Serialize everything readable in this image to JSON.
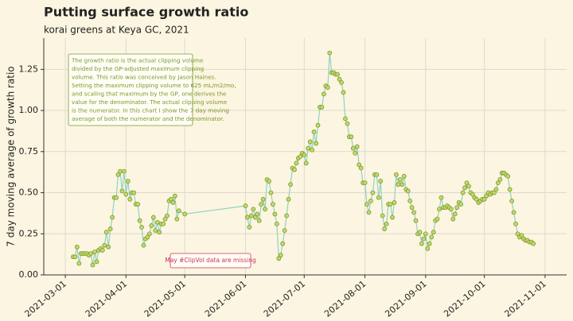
{
  "chart_data": {
    "type": "line",
    "title": "Putting surface growth ratio",
    "subtitle": "korai greens at Keya GC, 2021",
    "y_label": "7 day moving average of growth ratio",
    "annotations": [
      {
        "lines": [
          "The growth ratio is the actual clipping volume",
          "divided by the GP-adjusted maximum clipping",
          "volume. This ratio was conceived by Jason Haines.",
          "Setting the maximum clipping volume to 625 mL/m2/mo,",
          "and scaling that maximum by the GP, one derives the",
          "value for the denominator. The actual clipping volume",
          "is the numerator. In this chart I show the 7 day moving",
          "average of both the numerator and the denominator."
        ],
        "color": "#7a9a2a"
      },
      {
        "lines": [
          "May #ClipVol data are missing"
        ],
        "color": "#c8385a"
      }
    ],
    "x": [
      "2021-03-05",
      "2021-03-06",
      "2021-03-07",
      "2021-03-08",
      "2021-03-09",
      "2021-03-10",
      "2021-03-11",
      "2021-03-12",
      "2021-03-13",
      "2021-03-14",
      "2021-03-15",
      "2021-03-16",
      "2021-03-17",
      "2021-03-18",
      "2021-03-19",
      "2021-03-20",
      "2021-03-21",
      "2021-03-22",
      "2021-03-23",
      "2021-03-24",
      "2021-03-25",
      "2021-03-26",
      "2021-03-27",
      "2021-03-28",
      "2021-03-29",
      "2021-03-30",
      "2021-03-31",
      "2021-04-01",
      "2021-04-02",
      "2021-04-03",
      "2021-04-04",
      "2021-04-05",
      "2021-04-06",
      "2021-04-07",
      "2021-04-08",
      "2021-04-09",
      "2021-04-10",
      "2021-04-11",
      "2021-04-12",
      "2021-04-13",
      "2021-04-14",
      "2021-04-15",
      "2021-04-16",
      "2021-04-17",
      "2021-04-18",
      "2021-04-19",
      "2021-04-20",
      "2021-04-21",
      "2021-04-22",
      "2021-04-23",
      "2021-04-24",
      "2021-04-25",
      "2021-04-26",
      "2021-04-27",
      "2021-04-28",
      "2021-05-01",
      "2021-06-01",
      "2021-06-02",
      "2021-06-03",
      "2021-06-04",
      "2021-06-05",
      "2021-06-06",
      "2021-06-07",
      "2021-06-08",
      "2021-06-09",
      "2021-06-10",
      "2021-06-11",
      "2021-06-12",
      "2021-06-13",
      "2021-06-14",
      "2021-06-15",
      "2021-06-16",
      "2021-06-17",
      "2021-06-18",
      "2021-06-19",
      "2021-06-20",
      "2021-06-21",
      "2021-06-22",
      "2021-06-23",
      "2021-06-24",
      "2021-06-25",
      "2021-06-26",
      "2021-06-27",
      "2021-06-28",
      "2021-06-29",
      "2021-06-30",
      "2021-07-01",
      "2021-07-02",
      "2021-07-03",
      "2021-07-04",
      "2021-07-05",
      "2021-07-06",
      "2021-07-07",
      "2021-07-08",
      "2021-07-09",
      "2021-07-10",
      "2021-07-11",
      "2021-07-12",
      "2021-07-13",
      "2021-07-14",
      "2021-07-15",
      "2021-07-16",
      "2021-07-17",
      "2021-07-18",
      "2021-07-19",
      "2021-07-20",
      "2021-07-21",
      "2021-07-22",
      "2021-07-23",
      "2021-07-24",
      "2021-07-25",
      "2021-07-26",
      "2021-07-27",
      "2021-07-28",
      "2021-07-29",
      "2021-07-30",
      "2021-07-31",
      "2021-08-01",
      "2021-08-02",
      "2021-08-03",
      "2021-08-04",
      "2021-08-05",
      "2021-08-06",
      "2021-08-07",
      "2021-08-08",
      "2021-08-09",
      "2021-08-10",
      "2021-08-11",
      "2021-08-12",
      "2021-08-13",
      "2021-08-14",
      "2021-08-15",
      "2021-08-16",
      "2021-08-17",
      "2021-08-18",
      "2021-08-19",
      "2021-08-20",
      "2021-08-21",
      "2021-08-22",
      "2021-08-23",
      "2021-08-24",
      "2021-08-25",
      "2021-08-26",
      "2021-08-27",
      "2021-08-28",
      "2021-08-29",
      "2021-08-30",
      "2021-08-31",
      "2021-09-01",
      "2021-09-02",
      "2021-09-03",
      "2021-09-04",
      "2021-09-05",
      "2021-09-06",
      "2021-09-07",
      "2021-09-08",
      "2021-09-09",
      "2021-09-10",
      "2021-09-11",
      "2021-09-12",
      "2021-09-13",
      "2021-09-14",
      "2021-09-15",
      "2021-09-16",
      "2021-09-17",
      "2021-09-18",
      "2021-09-19",
      "2021-09-20",
      "2021-09-21",
      "2021-09-22",
      "2021-09-23",
      "2021-09-24",
      "2021-09-25",
      "2021-09-26",
      "2021-09-27",
      "2021-09-28",
      "2021-09-29",
      "2021-09-30",
      "2021-10-01",
      "2021-10-02",
      "2021-10-03",
      "2021-10-04",
      "2021-10-05",
      "2021-10-06",
      "2021-10-07",
      "2021-10-08",
      "2021-10-09",
      "2021-10-10",
      "2021-10-11",
      "2021-10-12",
      "2021-10-13",
      "2021-10-14",
      "2021-10-15",
      "2021-10-16",
      "2021-10-17",
      "2021-10-18",
      "2021-10-19",
      "2021-10-20",
      "2021-10-21",
      "2021-10-22",
      "2021-10-23",
      "2021-10-24",
      "2021-10-25",
      "2021-10-26"
    ],
    "values": [
      0.11,
      0.11,
      0.17,
      0.07,
      0.13,
      0.13,
      0.13,
      0.13,
      0.12,
      0.13,
      0.06,
      0.14,
      0.08,
      0.15,
      0.16,
      0.15,
      0.18,
      0.26,
      0.17,
      0.28,
      0.35,
      0.47,
      0.47,
      0.61,
      0.63,
      0.51,
      0.63,
      0.49,
      0.57,
      0.46,
      0.5,
      0.5,
      0.43,
      0.43,
      0.33,
      0.29,
      0.18,
      0.22,
      0.23,
      0.25,
      0.3,
      0.35,
      0.27,
      0.32,
      0.26,
      0.31,
      0.31,
      0.34,
      0.36,
      0.45,
      0.46,
      0.44,
      0.48,
      0.34,
      0.39,
      0.37,
      0.42,
      0.35,
      0.29,
      0.36,
      0.4,
      0.35,
      0.37,
      0.33,
      0.43,
      0.46,
      0.4,
      0.58,
      0.57,
      0.5,
      0.43,
      0.37,
      0.31,
      0.1,
      0.12,
      0.19,
      0.27,
      0.36,
      0.46,
      0.55,
      0.65,
      0.64,
      0.68,
      0.71,
      0.72,
      0.74,
      0.73,
      0.68,
      0.77,
      0.81,
      0.76,
      0.87,
      0.8,
      0.91,
      1.02,
      1.02,
      1.1,
      1.15,
      1.14,
      1.35,
      1.23,
      1.23,
      1.22,
      1.22,
      1.19,
      1.17,
      1.11,
      0.95,
      0.92,
      0.84,
      0.84,
      0.77,
      0.74,
      0.78,
      0.67,
      0.65,
      0.56,
      0.56,
      0.43,
      0.38,
      0.45,
      0.5,
      0.61,
      0.61,
      0.47,
      0.57,
      0.36,
      0.28,
      0.31,
      0.43,
      0.43,
      0.35,
      0.44,
      0.61,
      0.55,
      0.58,
      0.55,
      0.6,
      0.52,
      0.51,
      0.45,
      0.41,
      0.38,
      0.33,
      0.25,
      0.26,
      0.19,
      0.22,
      0.25,
      0.16,
      0.19,
      0.23,
      0.26,
      0.33,
      0.34,
      0.4,
      0.47,
      0.41,
      0.41,
      0.42,
      0.41,
      0.4,
      0.34,
      0.37,
      0.41,
      0.44,
      0.43,
      0.5,
      0.53,
      0.56,
      0.54,
      0.5,
      0.49,
      0.47,
      0.46,
      0.44,
      0.45,
      0.46,
      0.46,
      0.48,
      0.5,
      0.49,
      0.5,
      0.5,
      0.52,
      0.56,
      0.58,
      0.62,
      0.62,
      0.61,
      0.6,
      0.52,
      0.45,
      0.38,
      0.31,
      0.25,
      0.23,
      0.24,
      0.22,
      0.21,
      0.21,
      0.2,
      0.2,
      0.19
    ],
    "line_color": "#8fd3c0",
    "marker_color": "#c5d86d",
    "marker_edge": "#7a9a2a",
    "xlim": [
      "2021-02-18",
      "2021-11-12"
    ],
    "xticks": [
      "2021-03-01",
      "2021-04-01",
      "2021-05-01",
      "2021-06-01",
      "2021-07-01",
      "2021-08-01",
      "2021-09-01",
      "2021-10-01",
      "2021-11-01"
    ],
    "ylim": [
      0,
      1.44
    ],
    "yticks": [
      {
        "value": 0,
        "label": "0.00"
      },
      {
        "value": 0.25,
        "label": "0.25"
      },
      {
        "value": 0.5,
        "label": "0.50"
      },
      {
        "value": 0.75,
        "label": "0.75"
      },
      {
        "value": 1,
        "label": "1.00"
      },
      {
        "value": 1.25,
        "label": "1.25"
      }
    ],
    "grid": true
  }
}
